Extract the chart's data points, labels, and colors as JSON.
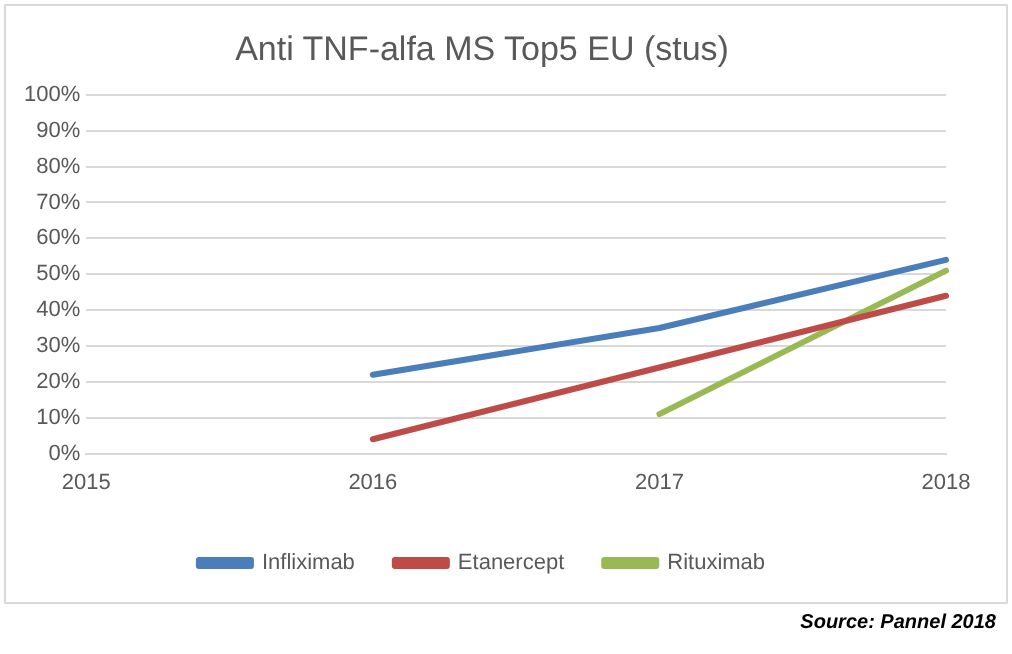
{
  "chart_data": {
    "type": "line",
    "title": "Anti TNF-alfa MS Top5 EU (stus)",
    "categories": [
      "2015",
      "2016",
      "2017",
      "2018"
    ],
    "series": [
      {
        "name": "Infliximab",
        "color": "#4a7ebb",
        "values": [
          null,
          22,
          35,
          54
        ]
      },
      {
        "name": "Etanercept",
        "color": "#be4b48",
        "values": [
          null,
          4,
          24,
          44
        ]
      },
      {
        "name": "Rituximab",
        "color": "#98b954",
        "values": [
          null,
          null,
          11,
          51
        ]
      }
    ],
    "ylim": [
      0,
      100
    ],
    "yticks": [
      {
        "value": 0,
        "label": "0%"
      },
      {
        "value": 10,
        "label": "10%"
      },
      {
        "value": 20,
        "label": "20%"
      },
      {
        "value": 30,
        "label": "30%"
      },
      {
        "value": 40,
        "label": "40%"
      },
      {
        "value": 50,
        "label": "50%"
      },
      {
        "value": 60,
        "label": "60%"
      },
      {
        "value": 70,
        "label": "70%"
      },
      {
        "value": 80,
        "label": "80%"
      },
      {
        "value": 90,
        "label": "90%"
      },
      {
        "value": 100,
        "label": "100%"
      }
    ],
    "grid": "y",
    "legend": "bottom",
    "marker": "none",
    "line_style": "solid",
    "annotations": [
      "Source: Pannel 2018"
    ]
  }
}
